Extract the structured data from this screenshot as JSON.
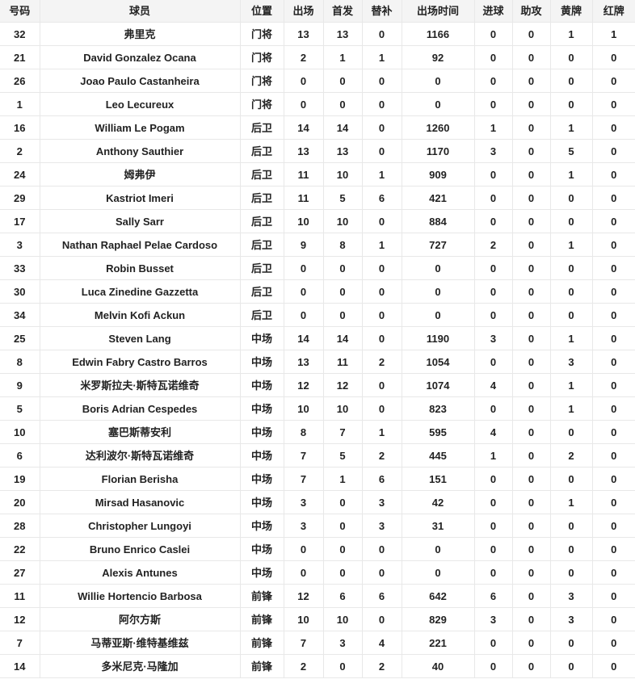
{
  "table": {
    "columns": [
      {
        "key": "number",
        "label": "号码"
      },
      {
        "key": "player",
        "label": "球员"
      },
      {
        "key": "position",
        "label": "位置"
      },
      {
        "key": "appearances",
        "label": "出场"
      },
      {
        "key": "starts",
        "label": "首发"
      },
      {
        "key": "sub",
        "label": "替补"
      },
      {
        "key": "minutes",
        "label": "出场时间"
      },
      {
        "key": "goals",
        "label": "进球"
      },
      {
        "key": "assists",
        "label": "助攻"
      },
      {
        "key": "yellow",
        "label": "黄牌"
      },
      {
        "key": "red",
        "label": "红牌"
      }
    ],
    "rows": [
      [
        "32",
        "弗里克",
        "门将",
        "13",
        "13",
        "0",
        "1166",
        "0",
        "0",
        "1",
        "1"
      ],
      [
        "21",
        "David Gonzalez Ocana",
        "门将",
        "2",
        "1",
        "1",
        "92",
        "0",
        "0",
        "0",
        "0"
      ],
      [
        "26",
        "Joao Paulo Castanheira",
        "门将",
        "0",
        "0",
        "0",
        "0",
        "0",
        "0",
        "0",
        "0"
      ],
      [
        "1",
        "Leo Lecureux",
        "门将",
        "0",
        "0",
        "0",
        "0",
        "0",
        "0",
        "0",
        "0"
      ],
      [
        "16",
        "William Le Pogam",
        "后卫",
        "14",
        "14",
        "0",
        "1260",
        "1",
        "0",
        "1",
        "0"
      ],
      [
        "2",
        "Anthony Sauthier",
        "后卫",
        "13",
        "13",
        "0",
        "1170",
        "3",
        "0",
        "5",
        "0"
      ],
      [
        "24",
        "姆弗伊",
        "后卫",
        "11",
        "10",
        "1",
        "909",
        "0",
        "0",
        "1",
        "0"
      ],
      [
        "29",
        "Kastriot Imeri",
        "后卫",
        "11",
        "5",
        "6",
        "421",
        "0",
        "0",
        "0",
        "0"
      ],
      [
        "17",
        "Sally Sarr",
        "后卫",
        "10",
        "10",
        "0",
        "884",
        "0",
        "0",
        "0",
        "0"
      ],
      [
        "3",
        "Nathan Raphael Pelae Cardoso",
        "后卫",
        "9",
        "8",
        "1",
        "727",
        "2",
        "0",
        "1",
        "0"
      ],
      [
        "33",
        "Robin Busset",
        "后卫",
        "0",
        "0",
        "0",
        "0",
        "0",
        "0",
        "0",
        "0"
      ],
      [
        "30",
        "Luca Zinedine Gazzetta",
        "后卫",
        "0",
        "0",
        "0",
        "0",
        "0",
        "0",
        "0",
        "0"
      ],
      [
        "34",
        "Melvin Kofi Ackun",
        "后卫",
        "0",
        "0",
        "0",
        "0",
        "0",
        "0",
        "0",
        "0"
      ],
      [
        "25",
        "Steven Lang",
        "中场",
        "14",
        "14",
        "0",
        "1190",
        "3",
        "0",
        "1",
        "0"
      ],
      [
        "8",
        "Edwin Fabry Castro Barros",
        "中场",
        "13",
        "11",
        "2",
        "1054",
        "0",
        "0",
        "3",
        "0"
      ],
      [
        "9",
        "米罗斯拉夫·斯特瓦诺维奇",
        "中场",
        "12",
        "12",
        "0",
        "1074",
        "4",
        "0",
        "1",
        "0"
      ],
      [
        "5",
        "Boris Adrian Cespedes",
        "中场",
        "10",
        "10",
        "0",
        "823",
        "0",
        "0",
        "1",
        "0"
      ],
      [
        "10",
        "塞巴斯蒂安利",
        "中场",
        "8",
        "7",
        "1",
        "595",
        "4",
        "0",
        "0",
        "0"
      ],
      [
        "6",
        "达利波尔·斯特瓦诺维奇",
        "中场",
        "7",
        "5",
        "2",
        "445",
        "1",
        "0",
        "2",
        "0"
      ],
      [
        "19",
        "Florian Berisha",
        "中场",
        "7",
        "1",
        "6",
        "151",
        "0",
        "0",
        "0",
        "0"
      ],
      [
        "20",
        "Mirsad Hasanovic",
        "中场",
        "3",
        "0",
        "3",
        "42",
        "0",
        "0",
        "1",
        "0"
      ],
      [
        "28",
        "Christopher Lungoyi",
        "中场",
        "3",
        "0",
        "3",
        "31",
        "0",
        "0",
        "0",
        "0"
      ],
      [
        "22",
        "Bruno Enrico Caslei",
        "中场",
        "0",
        "0",
        "0",
        "0",
        "0",
        "0",
        "0",
        "0"
      ],
      [
        "27",
        "Alexis Antunes",
        "中场",
        "0",
        "0",
        "0",
        "0",
        "0",
        "0",
        "0",
        "0"
      ],
      [
        "11",
        "Willie Hortencio Barbosa",
        "前锋",
        "12",
        "6",
        "6",
        "642",
        "6",
        "0",
        "3",
        "0"
      ],
      [
        "12",
        "阿尔方斯",
        "前锋",
        "10",
        "10",
        "0",
        "829",
        "3",
        "0",
        "3",
        "0"
      ],
      [
        "7",
        "马蒂亚斯·维特基维兹",
        "前锋",
        "7",
        "3",
        "4",
        "221",
        "0",
        "0",
        "0",
        "0"
      ],
      [
        "14",
        "多米尼克·马隆加",
        "前锋",
        "2",
        "0",
        "2",
        "40",
        "0",
        "0",
        "0",
        "0"
      ]
    ]
  },
  "colors": {
    "header_bg": "#f4f4f4",
    "border": "#e8e8e8",
    "text": "#222222",
    "row_bg": "#ffffff"
  }
}
